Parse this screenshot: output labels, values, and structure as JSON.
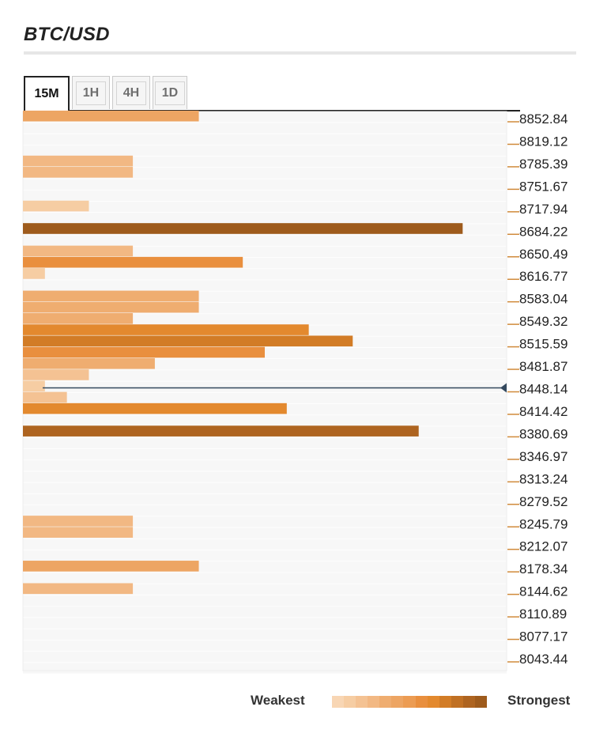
{
  "title": "BTC/USD",
  "tabs": [
    {
      "label": "15M",
      "active": true
    },
    {
      "label": "1H",
      "active": false
    },
    {
      "label": "4H",
      "active": false
    },
    {
      "label": "1D",
      "active": false
    }
  ],
  "legend": {
    "weakest": "Weakest",
    "strongest": "Strongest",
    "colors": [
      "#f8d6b4",
      "#f6cda3",
      "#f4c293",
      "#f2b883",
      "#efad70",
      "#eda563",
      "#ec9c53",
      "#e98f3e",
      "#e3892e",
      "#d27c26",
      "#c07023",
      "#ae6420",
      "#9e5b1c"
    ]
  },
  "chart_data": {
    "type": "bar",
    "orientation": "horizontal",
    "title": "BTC/USD",
    "timeframe": "15M",
    "price_ticks": [
      "8852.84",
      "8819.12",
      "8785.39",
      "8751.67",
      "8717.94",
      "8684.22",
      "8650.49",
      "8616.77",
      "8583.04",
      "8549.32",
      "8515.59",
      "8481.87",
      "8448.14",
      "8414.42",
      "8380.69",
      "8346.97",
      "8313.24",
      "8279.52",
      "8245.79",
      "8212.07",
      "8178.34",
      "8144.62",
      "8110.89",
      "8077.17",
      "8043.44"
    ],
    "current_price": 8448.14,
    "strength_max": 22,
    "levels": [
      {
        "price": 8852.84,
        "strength": 8,
        "level": 5
      },
      {
        "price": 8785.39,
        "strength": 5,
        "level": 3
      },
      {
        "price": 8785.39,
        "strength": 5,
        "level": 3
      },
      {
        "price": 8717.94,
        "strength": 3,
        "level": 1
      },
      {
        "price": 8684.22,
        "strength": 20,
        "level": 12
      },
      {
        "price": 8650.49,
        "strength": 5,
        "level": 3
      },
      {
        "price": 8650.49,
        "strength": 10,
        "level": 7
      },
      {
        "price": 8616.77,
        "strength": 1,
        "level": 1
      },
      {
        "price": 8583.04,
        "strength": 8,
        "level": 4
      },
      {
        "price": 8583.04,
        "strength": 8,
        "level": 4
      },
      {
        "price": 8549.32,
        "strength": 5,
        "level": 4
      },
      {
        "price": 8549.32,
        "strength": 13,
        "level": 8
      },
      {
        "price": 8515.59,
        "strength": 15,
        "level": 9
      },
      {
        "price": 8515.59,
        "strength": 11,
        "level": 7
      },
      {
        "price": 8481.87,
        "strength": 6,
        "level": 4
      },
      {
        "price": 8481.87,
        "strength": 3,
        "level": 2
      },
      {
        "price": 8448.14,
        "strength": 1,
        "level": 1
      },
      {
        "price": 8448.14,
        "strength": 2,
        "level": 2
      },
      {
        "price": 8414.42,
        "strength": 12,
        "level": 8
      },
      {
        "price": 8380.69,
        "strength": 18,
        "level": 11
      },
      {
        "price": 8245.79,
        "strength": 5,
        "level": 3
      },
      {
        "price": 8245.79,
        "strength": 5,
        "level": 3
      },
      {
        "price": 8178.34,
        "strength": 8,
        "level": 5
      },
      {
        "price": 8144.62,
        "strength": 5,
        "level": 3
      }
    ]
  }
}
